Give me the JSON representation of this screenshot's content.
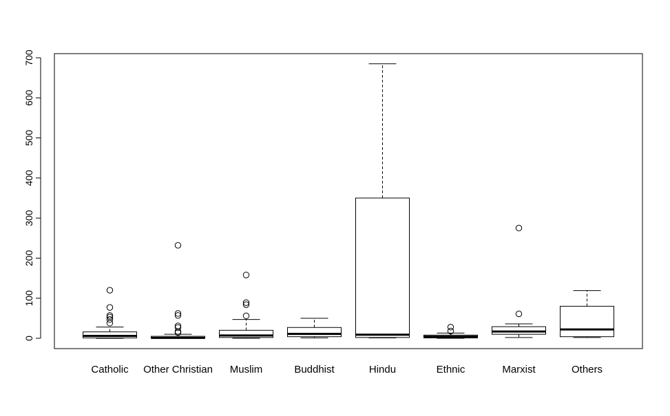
{
  "chart_data": {
    "type": "box",
    "title": "",
    "xlabel": "",
    "ylabel": "",
    "ylim": [
      -25,
      712
    ],
    "y_ticks": [
      0,
      100,
      200,
      300,
      400,
      500,
      600,
      700
    ],
    "y_tick_labels": [
      "0",
      "100",
      "200",
      "300",
      "400",
      "500",
      "600",
      "700"
    ],
    "categories": [
      "Catholic",
      "Other Christian",
      "Muslim",
      "Buddhist",
      "Hindu",
      "Ethnic",
      "Marxist",
      "Others"
    ],
    "boxes": [
      {
        "name": "Catholic",
        "whisker_low": 0,
        "q1": 1,
        "median": 6,
        "q3": 16,
        "whisker_high": 28,
        "outliers": [
          38,
          47,
          53,
          57,
          77,
          120
        ]
      },
      {
        "name": "Other Christian",
        "whisker_low": 0,
        "q1": 0,
        "median": 1,
        "q3": 5,
        "whisker_high": 10,
        "outliers": [
          14,
          17,
          27,
          31,
          57,
          62,
          232
        ]
      },
      {
        "name": "Muslim",
        "whisker_low": 0,
        "q1": 2,
        "median": 7,
        "q3": 20,
        "whisker_high": 47,
        "outliers": [
          56,
          84,
          89,
          158
        ]
      },
      {
        "name": "Buddhist",
        "whisker_low": 1,
        "q1": 4,
        "median": 11,
        "q3": 27,
        "whisker_high": 50,
        "outliers": []
      },
      {
        "name": "Hindu",
        "whisker_low": 1,
        "q1": 2,
        "median": 9,
        "q3": 350,
        "whisker_high": 685,
        "outliers": []
      },
      {
        "name": "Ethnic",
        "whisker_low": 0,
        "q1": 1,
        "median": 4,
        "q3": 8,
        "whisker_high": 13,
        "outliers": [
          18,
          28
        ]
      },
      {
        "name": "Marxist",
        "whisker_low": 2,
        "q1": 10,
        "median": 17,
        "q3": 29,
        "whisker_high": 36,
        "outliers": [
          61,
          275
        ]
      },
      {
        "name": "Others",
        "whisker_low": 2,
        "q1": 4,
        "median": 22,
        "q3": 80,
        "whisker_high": 119,
        "outliers": []
      }
    ],
    "grid": false,
    "legend": "none"
  }
}
